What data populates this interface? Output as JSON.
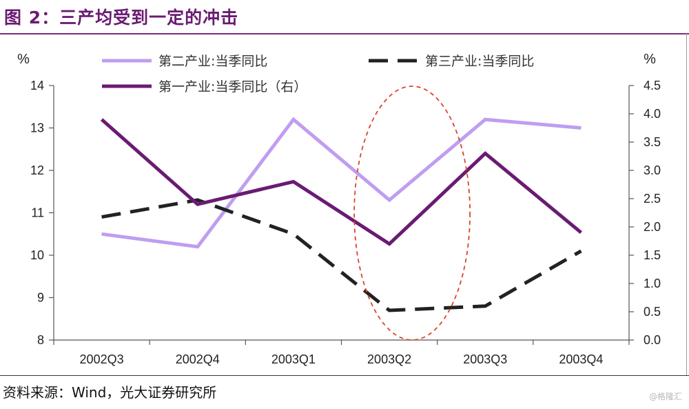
{
  "figure": {
    "title": "图 2：三产均受到一定的冲击",
    "source": "资料来源：Wind，光大证券研究所",
    "watermark": "@格隆汇"
  },
  "chart_data": {
    "type": "line",
    "title": "",
    "xlabel": "",
    "ylabel_left": "%",
    "ylabel_right": "%",
    "categories": [
      "2002Q3",
      "2002Q4",
      "2003Q1",
      "2003Q2",
      "2003Q3",
      "2003Q4"
    ],
    "ylim_left": [
      8,
      14
    ],
    "yticks_left": [
      "8",
      "9",
      "10",
      "11",
      "12",
      "13",
      "14"
    ],
    "ylim_right": [
      0,
      4.5
    ],
    "yticks_right": [
      "0.0",
      "0.5",
      "1.0",
      "1.5",
      "2.0",
      "2.5",
      "3.0",
      "3.5",
      "4.0",
      "4.5"
    ],
    "grid": false,
    "legend_position": "top",
    "series": [
      {
        "name": "第二产业:当季同比",
        "axis": "left",
        "color": "#c09df0",
        "style": "solid",
        "values": [
          10.5,
          10.2,
          13.2,
          11.3,
          13.2,
          13.0
        ]
      },
      {
        "name": "第三产业:当季同比",
        "axis": "left",
        "color": "#222222",
        "style": "dashed",
        "values": [
          10.9,
          11.3,
          10.5,
          8.7,
          8.8,
          10.1
        ]
      },
      {
        "name": "第一产业:当季同比（右）",
        "axis": "right",
        "color": "#6a1b72",
        "style": "solid",
        "values": [
          3.9,
          2.4,
          2.8,
          1.7,
          3.3,
          1.9
        ]
      }
    ],
    "annotation": {
      "shape": "ellipse",
      "category": "2003Q2",
      "color": "#d9432b",
      "style": "dashed"
    }
  }
}
